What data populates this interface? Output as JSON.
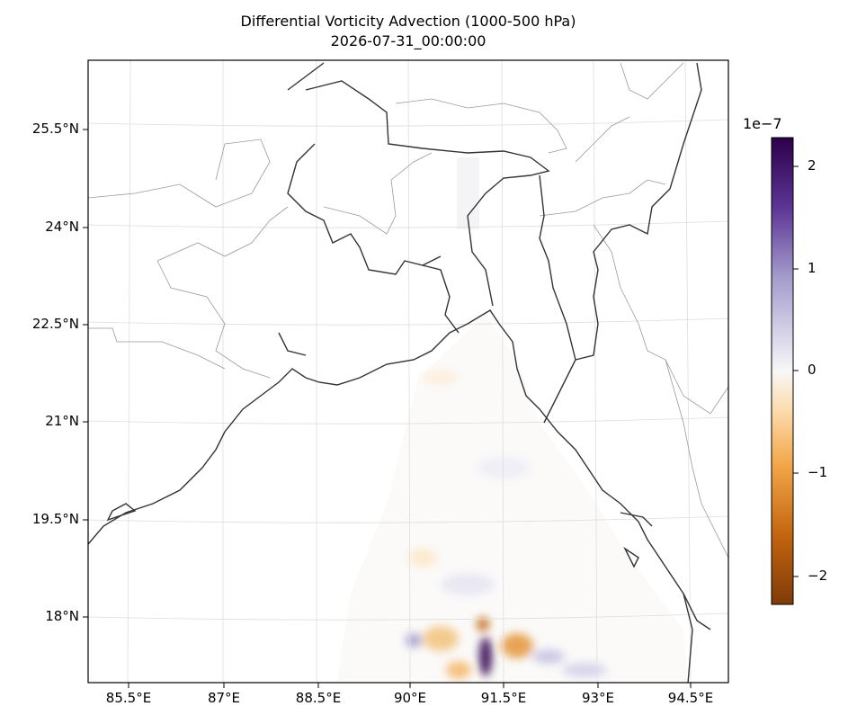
{
  "title": "Differential Vorticity Advection (1000-500 hPa)",
  "subtitle": "2026-07-31_00:00:00",
  "lat_ticks": [
    "25.5°N",
    "24°N",
    "22.5°N",
    "21°N",
    "19.5°N",
    "18°N"
  ],
  "lon_ticks": [
    "85.5°E",
    "87°E",
    "88.5°E",
    "90°E",
    "91.5°E",
    "93°E",
    "94.5°E"
  ],
  "colorbar": {
    "exponent": "1e−7",
    "ticks": [
      "2",
      "1",
      "0",
      "−1",
      "−2"
    ],
    "values": [
      2,
      1,
      0,
      -1,
      -2
    ],
    "range": [
      -2.3,
      2.3
    ],
    "colormap": "PuOr"
  },
  "colors": {
    "coastline": "#333333",
    "borders": "#999999",
    "grid": "#dddddd",
    "positive": "#2d004b",
    "negative": "#7f3b08"
  }
}
